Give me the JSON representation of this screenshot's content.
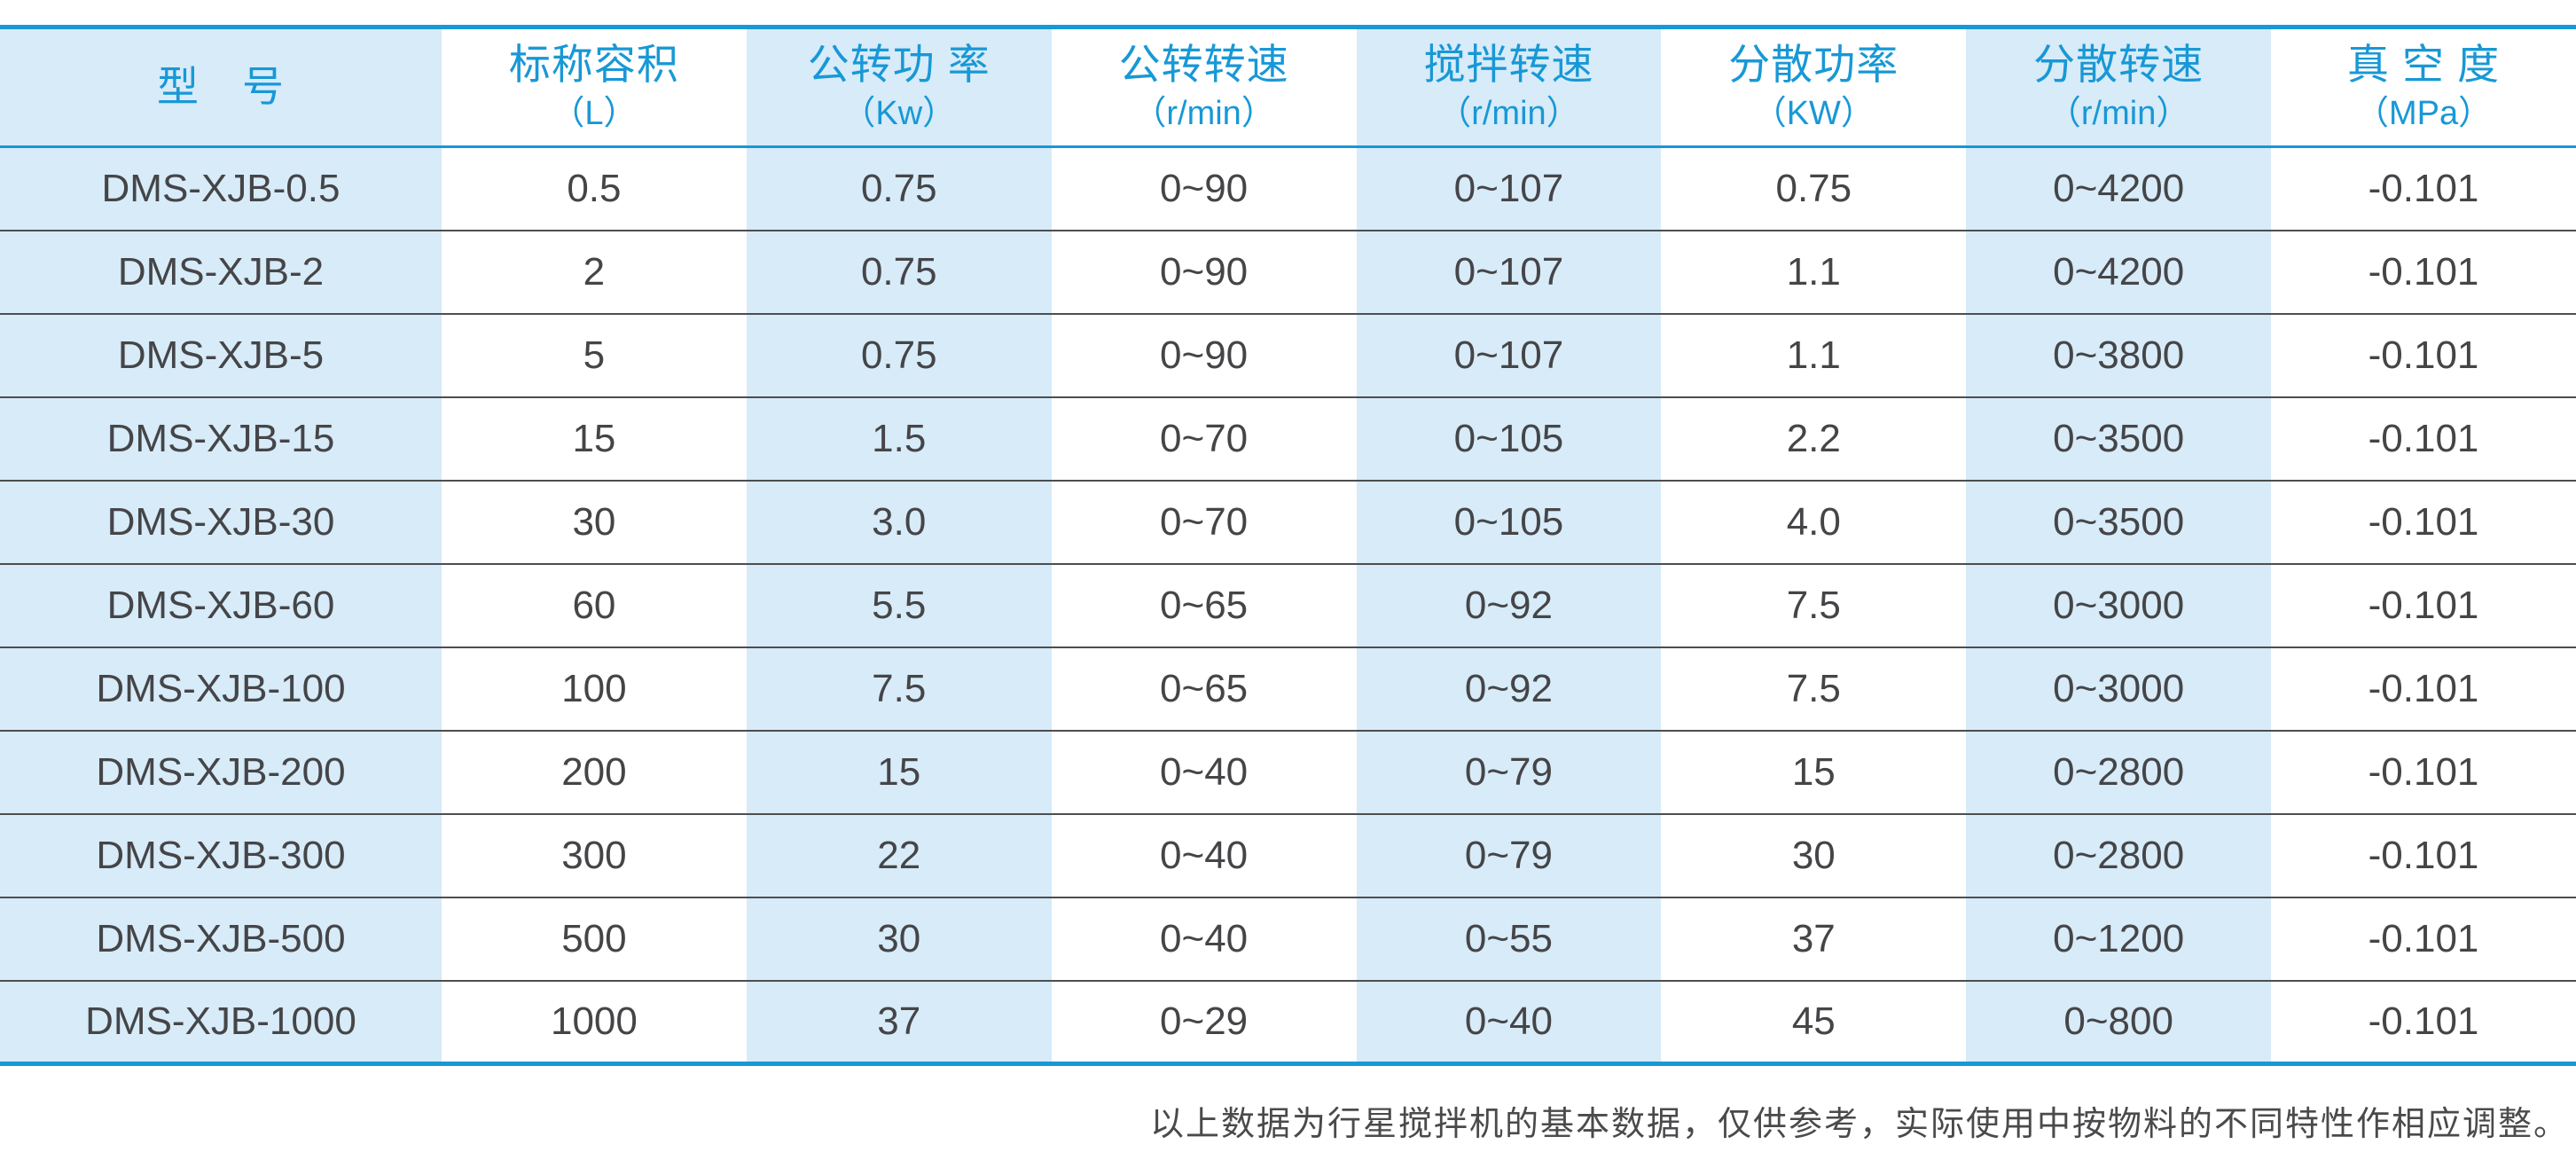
{
  "accent_colors": {
    "blue": "#1898D6",
    "light_blue": "#D7EBF8",
    "row_line": "#4D4E50",
    "data_text": "#454548"
  },
  "table": {
    "columns": [
      {
        "label": "型　号",
        "unit": ""
      },
      {
        "label": "标称容积",
        "unit": "（L）"
      },
      {
        "label": "公转功 率",
        "unit": "（Kw）"
      },
      {
        "label": "公转转速",
        "unit": "（r/min）"
      },
      {
        "label": "搅拌转速",
        "unit": "（r/min）"
      },
      {
        "label": "分散功率",
        "unit": "（KW）"
      },
      {
        "label": "分散转速",
        "unit": "（r/min）"
      },
      {
        "label": "真 空 度",
        "unit": "（MPa）"
      }
    ],
    "rows": [
      [
        "DMS-XJB-0.5",
        "0.5",
        "0.75",
        "0~90",
        "0~107",
        "0.75",
        "0~4200",
        "-0.101"
      ],
      [
        "DMS-XJB-2",
        "2",
        "0.75",
        "0~90",
        "0~107",
        "1.1",
        "0~4200",
        "-0.101"
      ],
      [
        "DMS-XJB-5",
        "5",
        "0.75",
        "0~90",
        "0~107",
        "1.1",
        "0~3800",
        "-0.101"
      ],
      [
        "DMS-XJB-15",
        "15",
        "1.5",
        "0~70",
        "0~105",
        "2.2",
        "0~3500",
        "-0.101"
      ],
      [
        "DMS-XJB-30",
        "30",
        "3.0",
        "0~70",
        "0~105",
        "4.0",
        "0~3500",
        "-0.101"
      ],
      [
        "DMS-XJB-60",
        "60",
        "5.5",
        "0~65",
        "0~92",
        "7.5",
        "0~3000",
        "-0.101"
      ],
      [
        "DMS-XJB-100",
        "100",
        "7.5",
        "0~65",
        "0~92",
        "7.5",
        "0~3000",
        "-0.101"
      ],
      [
        "DMS-XJB-200",
        "200",
        "15",
        "0~40",
        "0~79",
        "15",
        "0~2800",
        "-0.101"
      ],
      [
        "DMS-XJB-300",
        "300",
        "22",
        "0~40",
        "0~79",
        "30",
        "0~2800",
        "-0.101"
      ],
      [
        "DMS-XJB-500",
        "500",
        "30",
        "0~40",
        "0~55",
        "37",
        "0~1200",
        "-0.101"
      ],
      [
        "DMS-XJB-1000",
        "1000",
        "37",
        "0~29",
        "0~40",
        "45",
        "0~800",
        "-0.101"
      ]
    ]
  },
  "footnote": "以上数据为行星搅拌机的基本数据，仅供参考，实际使用中按物料的不同特性作相应调整。"
}
